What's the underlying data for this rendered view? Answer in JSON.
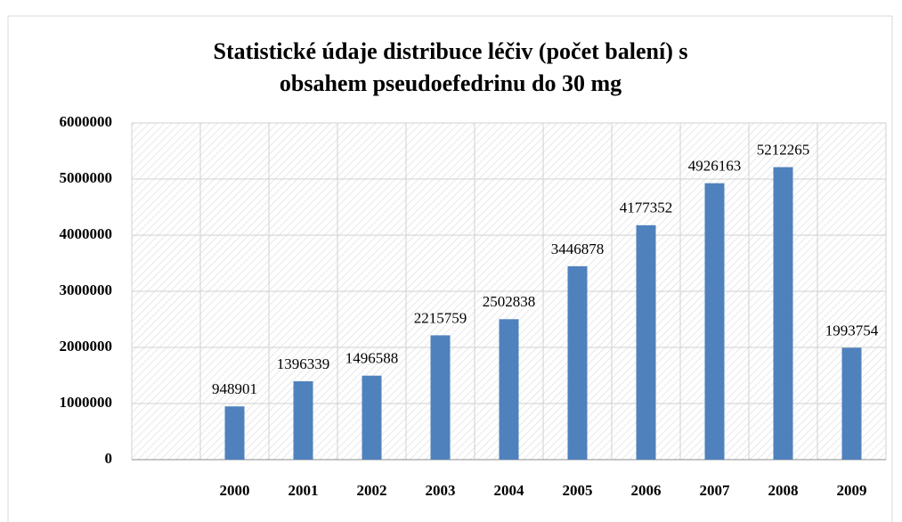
{
  "chart_data": {
    "type": "bar",
    "title": "Statistické údaje distribuce léčiv (počet balení) s",
    "subtitle": "obsahem pseudoefedrinu do 30 mg",
    "categories": [
      null,
      "2000",
      "2001",
      "2002",
      "2003",
      "2004",
      "2005",
      "2006",
      "2007",
      "2008",
      "2009"
    ],
    "values": [
      null,
      948901,
      1396339,
      1496588,
      2215759,
      2502838,
      3446878,
      4177352,
      4926163,
      5212265,
      1993754
    ],
    "color": "#4f81bd",
    "ylim": [
      0,
      6000000
    ],
    "yticks": [
      0,
      1000000,
      2000000,
      3000000,
      4000000,
      5000000,
      6000000
    ],
    "grid": true
  }
}
